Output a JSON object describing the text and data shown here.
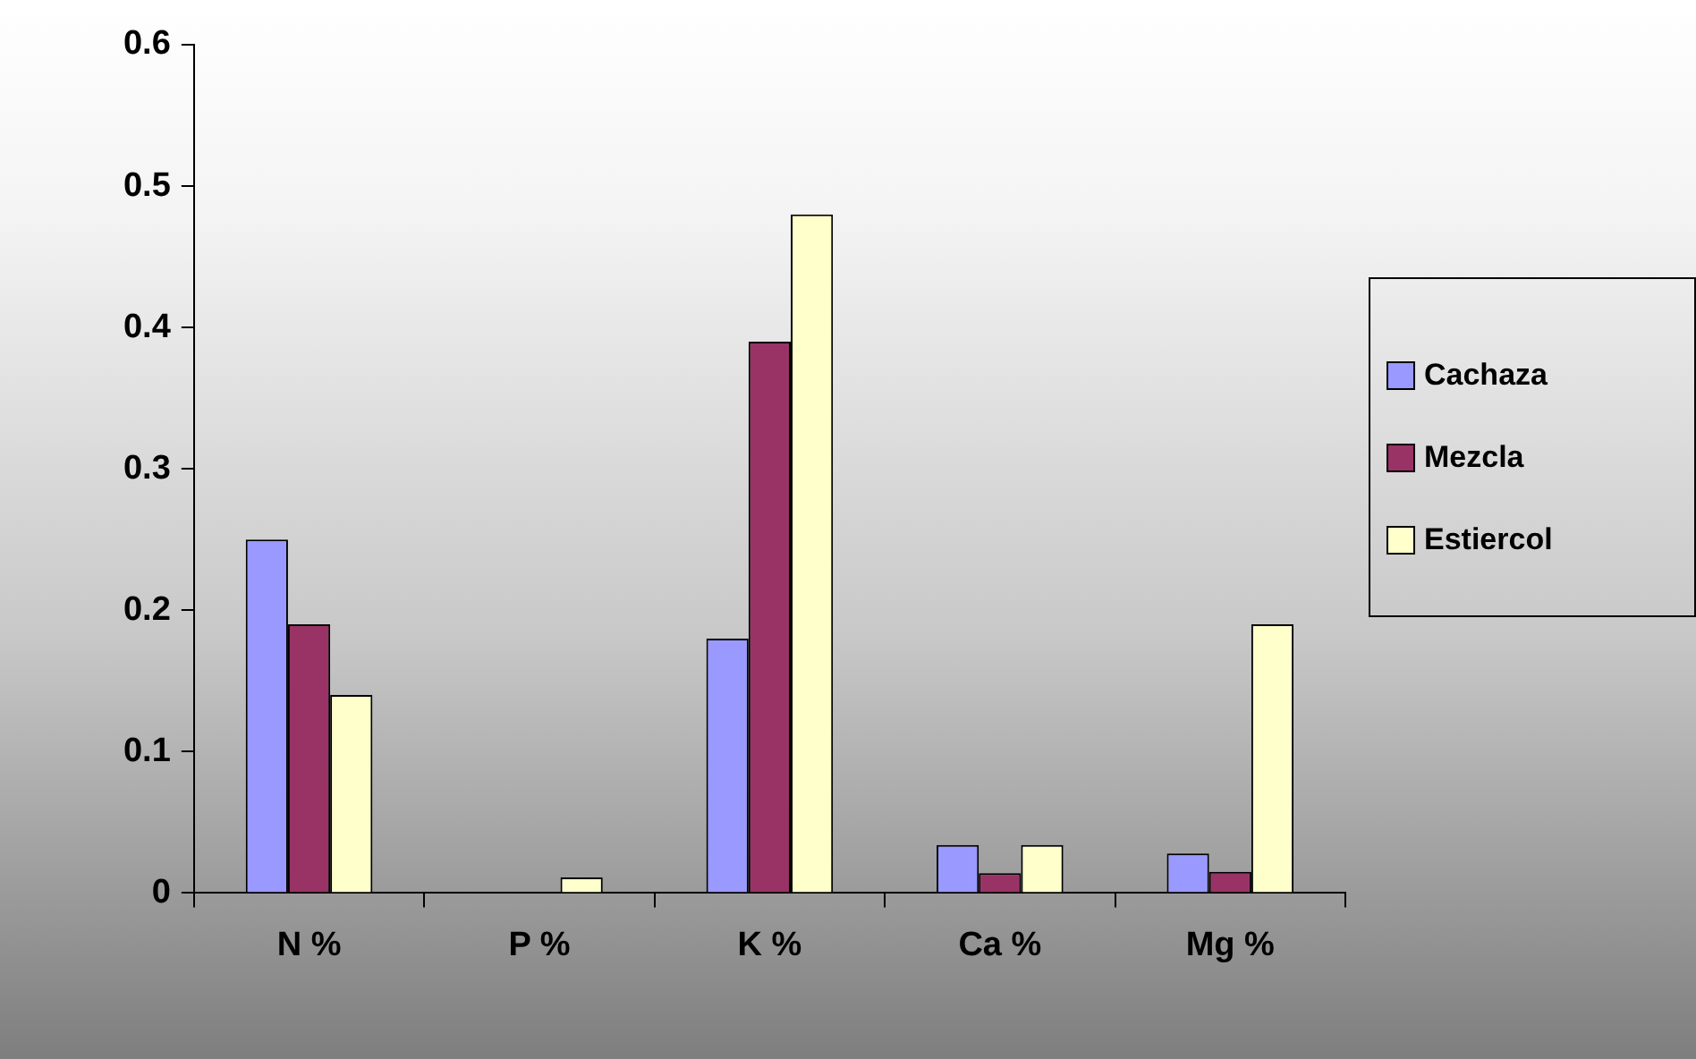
{
  "chart_data": {
    "type": "bar",
    "categories": [
      "N %",
      "P %",
      "K %",
      "Ca %",
      "Mg %"
    ],
    "series": [
      {
        "name": "Cachaza",
        "color": "#9999ff",
        "values": [
          0.25,
          null,
          0.18,
          0.034,
          0.028
        ]
      },
      {
        "name": "Mezcla",
        "color": "#993366",
        "values": [
          0.19,
          null,
          0.39,
          0.014,
          0.015
        ]
      },
      {
        "name": "Estiercol",
        "color": "#ffffcc",
        "values": [
          0.14,
          0.011,
          0.48,
          0.034,
          0.19
        ]
      }
    ],
    "ylim": [
      0,
      0.6
    ],
    "yticks": [
      0,
      0.1,
      0.2,
      0.3,
      0.4,
      0.5,
      0.6
    ],
    "grid": false,
    "legend": "right"
  }
}
